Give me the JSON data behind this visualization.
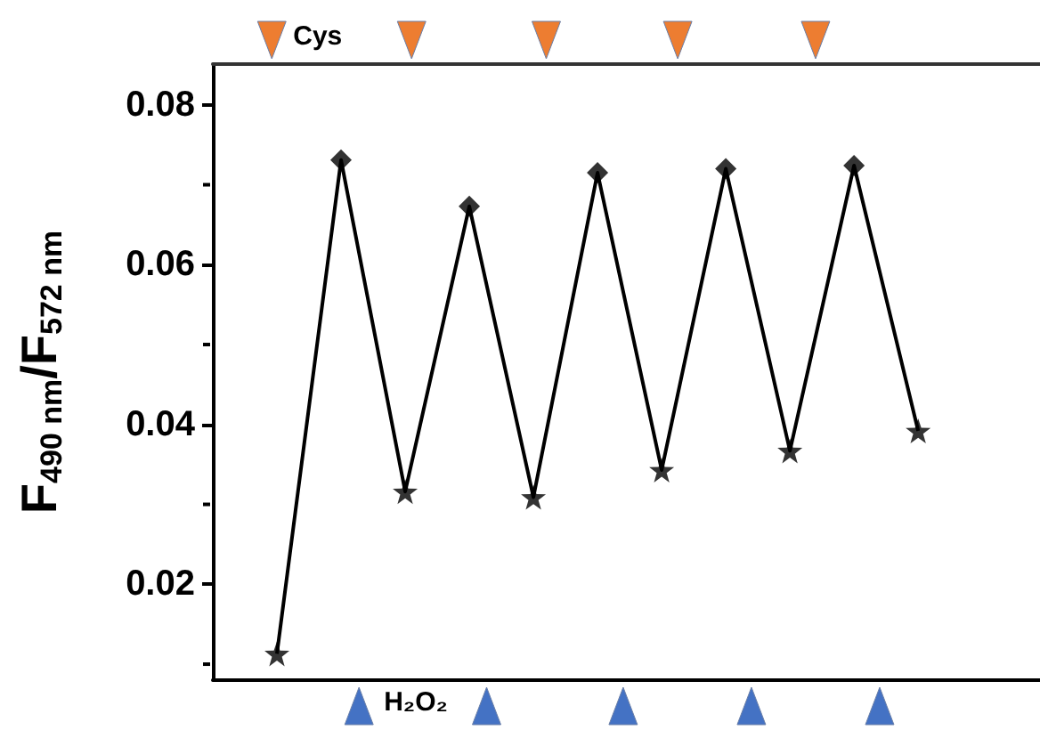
{
  "chart_data": {
    "type": "line",
    "ylabel": "F$_{490 nm}$/F$_{572 nm}$",
    "categories": [
      null,
      null,
      null,
      null,
      null,
      null,
      null,
      null,
      null,
      null,
      null
    ],
    "series": [
      {
        "color": "#000000",
        "marker": "none",
        "values": [
          0.0113,
          0.0731,
          0.0316,
          0.0673,
          0.0309,
          0.0715,
          0.0343,
          0.072,
          0.0367,
          0.0724,
          0.0392
        ]
      },
      {
        "type": "scatter",
        "color": "#000000",
        "marker": "star",
        "values": [
          0.0113,
          null,
          0.0316,
          null,
          0.0309,
          null,
          0.0343,
          null,
          0.0367,
          null,
          0.0392
        ]
      },
      {
        "type": "scatter",
        "color": "#000000",
        "marker": "diamond",
        "values": [
          null,
          0.0731,
          null,
          0.0673,
          null,
          0.0715,
          null,
          0.072,
          null,
          0.0724,
          null
        ]
      }
    ],
    "ylim": [
      0.008,
      0.0851
    ],
    "yticks": [
      0.02,
      0.04,
      0.06,
      0.08
    ],
    "annotations": [
      "Cys",
      "H₂O₂"
    ],
    "tick_labels": "y",
    "grid": false
  }
}
